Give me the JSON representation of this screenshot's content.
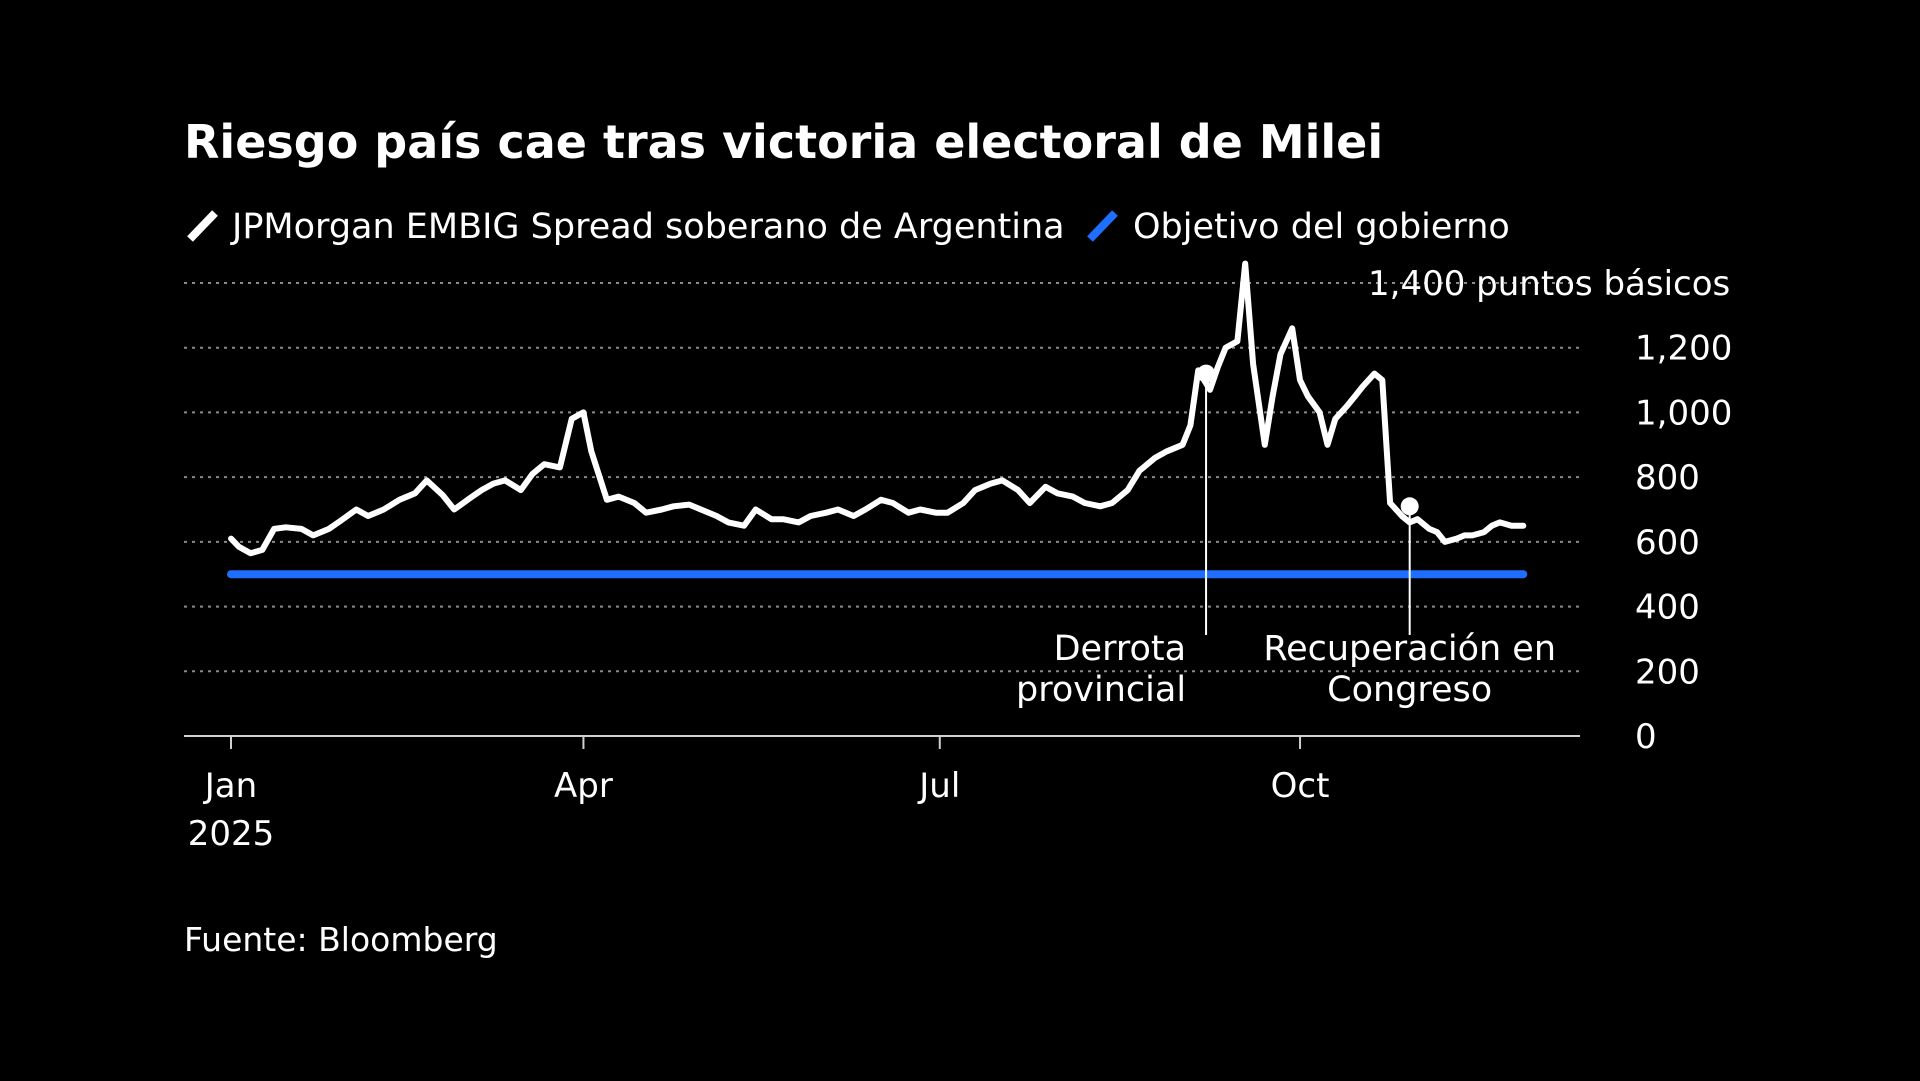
{
  "chart_data": {
    "type": "line",
    "title": "Riesgo país cae tras victoria electoral de Milei",
    "source": "Fuente: Bloomberg",
    "ylabel_top": "1,400 puntos básicos",
    "y_ticks": [
      0,
      200,
      400,
      600,
      800,
      1000,
      1200,
      1400
    ],
    "y_tick_labels": [
      "0",
      "200",
      "400",
      "600",
      "800",
      "1,000",
      "1,200",
      ""
    ],
    "ylim": [
      0,
      1400
    ],
    "xlim": [
      "2025-01-01",
      "2025-11-30"
    ],
    "x_ticks": [
      {
        "date": "2025-01-01",
        "label": "Jan",
        "sublabel": "2025"
      },
      {
        "date": "2025-04-01",
        "label": "Apr",
        "sublabel": ""
      },
      {
        "date": "2025-07-01",
        "label": "Jul",
        "sublabel": ""
      },
      {
        "date": "2025-10-01",
        "label": "Oct",
        "sublabel": ""
      }
    ],
    "grid": true,
    "legend_position": "top-left",
    "series": [
      {
        "name": "JPMorgan EMBIG Spread soberano de Argentina",
        "color": "#ffffff",
        "x": [
          "2025-01-01",
          "2025-01-03",
          "2025-01-06",
          "2025-01-09",
          "2025-01-12",
          "2025-01-15",
          "2025-01-19",
          "2025-01-22",
          "2025-01-26",
          "2025-01-29",
          "2025-02-02",
          "2025-02-05",
          "2025-02-09",
          "2025-02-13",
          "2025-02-17",
          "2025-02-20",
          "2025-02-24",
          "2025-02-27",
          "2025-03-03",
          "2025-03-06",
          "2025-03-09",
          "2025-03-12",
          "2025-03-16",
          "2025-03-19",
          "2025-03-22",
          "2025-03-26",
          "2025-03-29",
          "2025-04-01",
          "2025-04-03",
          "2025-04-07",
          "2025-04-10",
          "2025-04-14",
          "2025-04-17",
          "2025-04-21",
          "2025-04-24",
          "2025-04-28",
          "2025-05-01",
          "2025-05-05",
          "2025-05-08",
          "2025-05-12",
          "2025-05-15",
          "2025-05-19",
          "2025-05-22",
          "2025-05-26",
          "2025-05-29",
          "2025-06-02",
          "2025-06-05",
          "2025-06-09",
          "2025-06-12",
          "2025-06-16",
          "2025-06-19",
          "2025-06-23",
          "2025-06-26",
          "2025-06-30",
          "2025-07-03",
          "2025-07-07",
          "2025-07-10",
          "2025-07-14",
          "2025-07-17",
          "2025-07-21",
          "2025-07-24",
          "2025-07-28",
          "2025-07-31",
          "2025-08-04",
          "2025-08-07",
          "2025-08-11",
          "2025-08-14",
          "2025-08-18",
          "2025-08-21",
          "2025-08-25",
          "2025-08-28",
          "2025-09-01",
          "2025-09-03",
          "2025-09-05",
          "2025-09-08",
          "2025-09-10",
          "2025-09-12",
          "2025-09-15",
          "2025-09-17",
          "2025-09-19",
          "2025-09-22",
          "2025-09-24",
          "2025-09-26",
          "2025-09-29",
          "2025-10-01",
          "2025-10-03",
          "2025-10-06",
          "2025-10-08",
          "2025-10-10",
          "2025-10-13",
          "2025-10-15",
          "2025-10-17",
          "2025-10-20",
          "2025-10-22",
          "2025-10-24",
          "2025-10-27",
          "2025-10-29",
          "2025-10-31",
          "2025-11-03",
          "2025-11-05",
          "2025-11-07",
          "2025-11-10",
          "2025-11-12",
          "2025-11-14",
          "2025-11-17",
          "2025-11-19",
          "2025-11-21",
          "2025-11-24",
          "2025-11-27"
        ],
        "values": [
          610,
          585,
          565,
          575,
          640,
          645,
          640,
          620,
          640,
          665,
          700,
          680,
          700,
          730,
          750,
          790,
          745,
          700,
          735,
          760,
          780,
          790,
          760,
          810,
          840,
          830,
          980,
          1000,
          880,
          730,
          740,
          720,
          690,
          700,
          710,
          715,
          700,
          680,
          660,
          650,
          700,
          670,
          670,
          660,
          680,
          690,
          700,
          680,
          700,
          730,
          720,
          690,
          700,
          690,
          690,
          720,
          760,
          780,
          790,
          760,
          720,
          770,
          750,
          740,
          720,
          710,
          720,
          760,
          820,
          860,
          880,
          900,
          960,
          1130,
          1070,
          1140,
          1200,
          1220,
          1460,
          1150,
          900,
          1050,
          1180,
          1260,
          1100,
          1050,
          1000,
          900,
          980,
          1020,
          1050,
          1080,
          1120,
          1100,
          720,
          680,
          660,
          670,
          640,
          630,
          600,
          610,
          620,
          620,
          630,
          650,
          660,
          650,
          650
        ]
      },
      {
        "name": "Objetivo del gobierno",
        "color": "#1f6fff",
        "x": [
          "2025-01-01",
          "2025-11-27"
        ],
        "values": [
          500,
          500
        ]
      }
    ],
    "annotations": [
      {
        "date": "2025-09-07",
        "value": 1120,
        "label_lines": [
          "Derrota",
          "provincial"
        ],
        "align": "end"
      },
      {
        "date": "2025-10-29",
        "value": 710,
        "label_lines": [
          "Recuperación en",
          "Congreso"
        ],
        "align": "middle"
      }
    ]
  }
}
